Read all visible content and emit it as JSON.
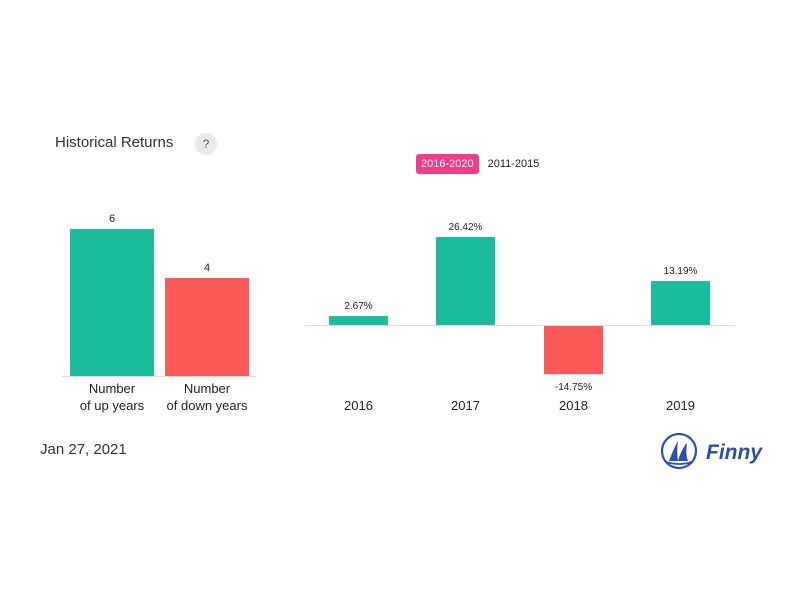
{
  "header": {
    "title": "Historical Returns",
    "help_label": "?"
  },
  "range_tabs": [
    {
      "label": "2016-2020",
      "active": true
    },
    {
      "label": "2011-2015",
      "active": false
    }
  ],
  "footer": {
    "date": "Jan 27, 2021",
    "brand": "Finny"
  },
  "colors": {
    "positive": "#1abc9c",
    "negative": "#ff5a5a",
    "accent": "#f23d86",
    "brand": "#2b50a8"
  },
  "chart_data": [
    {
      "type": "bar",
      "title": "",
      "categories": [
        "Number\nof up years",
        "Number\nof down years"
      ],
      "values": [
        6,
        4
      ],
      "data_labels": [
        "6",
        "4"
      ],
      "ylim": [
        0,
        6
      ]
    },
    {
      "type": "bar",
      "title": "",
      "categories": [
        "2016",
        "2017",
        "2018",
        "2019"
      ],
      "values": [
        2.67,
        26.42,
        -14.75,
        13.19
      ],
      "data_labels": [
        "2.67%",
        "26.42%",
        "-14.75%",
        "13.19%"
      ],
      "ylim": [
        -14.75,
        26.42
      ]
    }
  ]
}
